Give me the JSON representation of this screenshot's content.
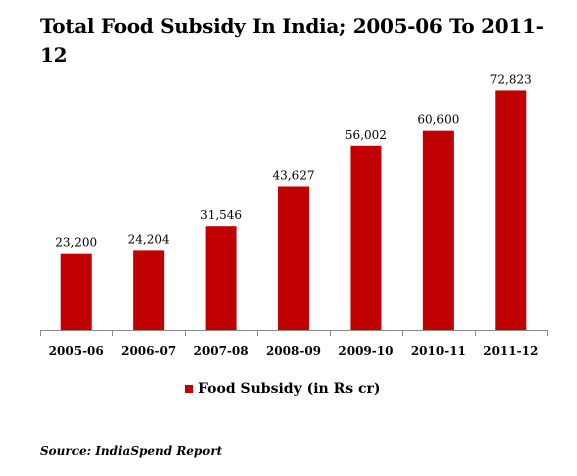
{
  "chart_data": {
    "type": "bar",
    "title": "Total Food Subsidy In India; 2005-06 To 2011-12",
    "categories": [
      "2005-06",
      "2006-07",
      "2007-08",
      "2008-09",
      "2009-10",
      "2010-11",
      "2011-12"
    ],
    "series": [
      {
        "name": "Food Subsidy (in Rs cr)",
        "values": [
          23200,
          24204,
          31546,
          43627,
          56002,
          60600,
          72823
        ],
        "labels": [
          "23,200",
          "24,204",
          "31,546",
          "43,627",
          "56,002",
          "60,600",
          "72,823"
        ],
        "color": "#c00000"
      }
    ],
    "xlabel": "",
    "ylabel": "",
    "ylim": [
      0,
      76000
    ],
    "grid": false,
    "legend": "bottom"
  },
  "source": "Source: IndiaSpend Report"
}
